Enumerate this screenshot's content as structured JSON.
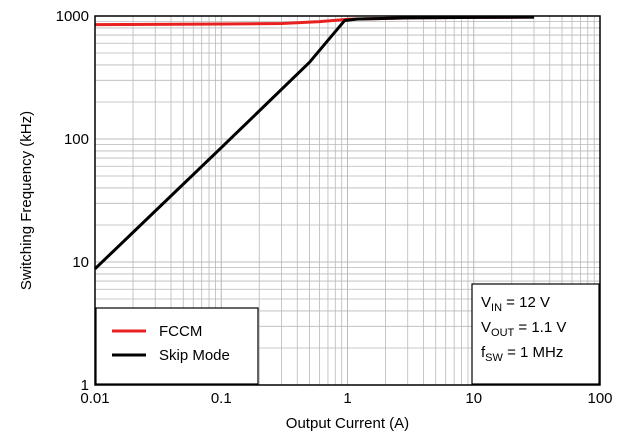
{
  "chart_data": {
    "type": "line",
    "xlabel": "Output Current (A)",
    "ylabel": "Switching Frequency (kHz)",
    "x_scale": "log",
    "y_scale": "log",
    "xlim": [
      0.01,
      100
    ],
    "ylim": [
      1,
      1000
    ],
    "grid": true,
    "x_ticks": [
      "0.01",
      "0.1",
      "1",
      "10",
      "100"
    ],
    "y_ticks": [
      "1",
      "10",
      "100",
      "1000"
    ],
    "legend_position": "bottom-left",
    "series": [
      {
        "name": "FCCM",
        "color": "#e8201f",
        "points": [
          [
            0.01,
            850
          ],
          [
            0.1,
            860
          ],
          [
            0.3,
            870
          ],
          [
            0.6,
            900
          ],
          [
            1.0,
            940
          ],
          [
            3,
            965
          ],
          [
            10,
            975
          ],
          [
            30,
            980
          ]
        ]
      },
      {
        "name": "Skip Mode",
        "color": "#000000",
        "points": [
          [
            0.01,
            8.8
          ],
          [
            0.1,
            85
          ],
          [
            0.5,
            420
          ],
          [
            0.95,
            920
          ],
          [
            1.2,
            945
          ],
          [
            3,
            965
          ],
          [
            10,
            975
          ],
          [
            30,
            980
          ]
        ]
      }
    ],
    "annotations": [
      {
        "base": "V",
        "sub": "IN",
        "rest": " = 12 V"
      },
      {
        "base": "V",
        "sub": "OUT",
        "rest": " = 1.1 V"
      },
      {
        "base": "f",
        "sub": "SW",
        "rest": " = 1 MHz"
      }
    ]
  }
}
